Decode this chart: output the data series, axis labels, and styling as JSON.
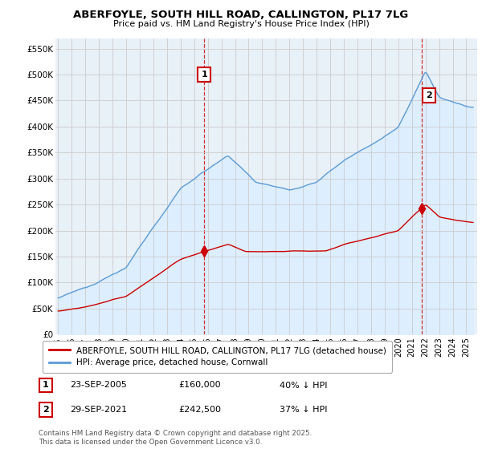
{
  "title": "ABERFOYLE, SOUTH HILL ROAD, CALLINGTON, PL17 7LG",
  "subtitle": "Price paid vs. HM Land Registry's House Price Index (HPI)",
  "legend_label_red": "ABERFOYLE, SOUTH HILL ROAD, CALLINGTON, PL17 7LG (detached house)",
  "legend_label_blue": "HPI: Average price, detached house, Cornwall",
  "annotation1_label": "1",
  "annotation1_date": "23-SEP-2005",
  "annotation1_price": "£160,000",
  "annotation1_hpi": "40% ↓ HPI",
  "annotation1_year": 2005.73,
  "annotation1_value_red": 160000,
  "annotation2_label": "2",
  "annotation2_date": "29-SEP-2021",
  "annotation2_price": "£242,500",
  "annotation2_hpi": "37% ↓ HPI",
  "annotation2_year": 2021.75,
  "annotation2_value_red": 242500,
  "footer": "Contains HM Land Registry data © Crown copyright and database right 2025.\nThis data is licensed under the Open Government Licence v3.0.",
  "ylim": [
    0,
    570000
  ],
  "yticks": [
    0,
    50000,
    100000,
    150000,
    200000,
    250000,
    300000,
    350000,
    400000,
    450000,
    500000,
    550000
  ],
  "ytick_labels": [
    "£0",
    "£50K",
    "£100K",
    "£150K",
    "£200K",
    "£250K",
    "£300K",
    "£350K",
    "£400K",
    "£450K",
    "£500K",
    "£550K"
  ],
  "xlim_left": 1994.8,
  "xlim_right": 2025.8,
  "red_color": "#cc0000",
  "blue_color": "#5b9bd5",
  "fill_color": "#ddeeff",
  "vline_color": "#cc0000",
  "background_color": "#ffffff",
  "grid_color": "#cccccc",
  "plot_bg_color": "#e8f0f8"
}
